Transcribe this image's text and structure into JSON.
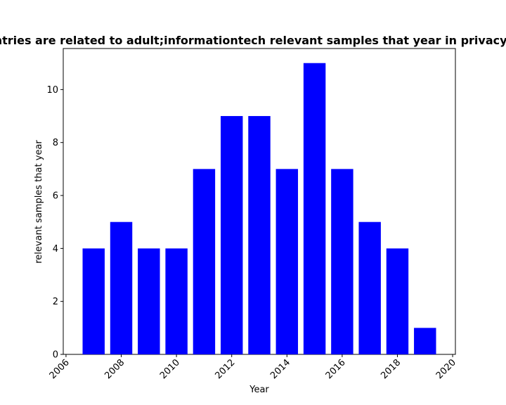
{
  "chart_data": {
    "type": "bar",
    "title": "Countries are related to adult;informationtech relevant samples that year in privacy policy",
    "xlabel": "Year",
    "ylabel": "relevant samples that year",
    "x": [
      2007,
      2008,
      2009,
      2010,
      2011,
      2012,
      2013,
      2014,
      2015,
      2016,
      2017,
      2018,
      2019
    ],
    "values": [
      4,
      5,
      4,
      4,
      7,
      9,
      9,
      7,
      11,
      7,
      5,
      4,
      1
    ],
    "xlim": [
      2005.9,
      2020.1
    ],
    "ylim": [
      0,
      11.55
    ],
    "xticks": [
      2006,
      2008,
      2010,
      2012,
      2014,
      2016,
      2018,
      2020
    ],
    "yticks": [
      0,
      2,
      4,
      6,
      8,
      10
    ],
    "bar_color": "#0000ff",
    "grid": false,
    "legend": "none"
  }
}
